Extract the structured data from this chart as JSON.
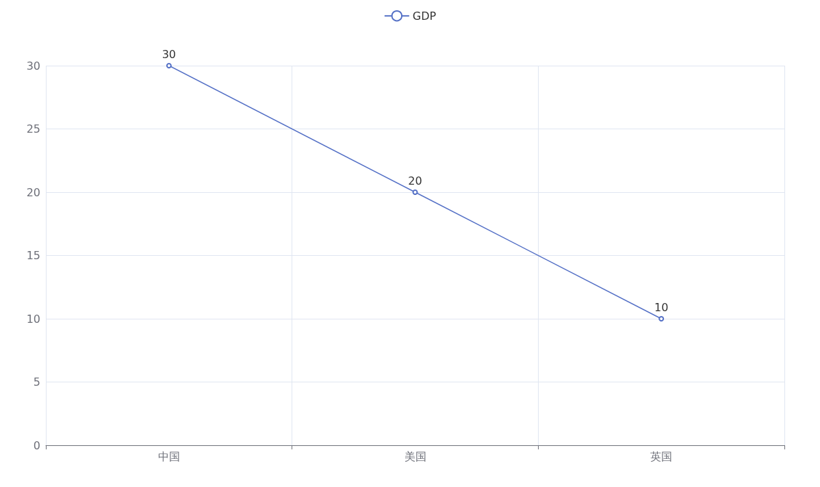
{
  "chart_data": {
    "type": "line",
    "categories": [
      "中国",
      "美国",
      "英国"
    ],
    "series": [
      {
        "name": "GDP",
        "color": "#5470c6",
        "values": [
          30,
          20,
          10
        ]
      }
    ],
    "ylim": [
      0,
      30
    ],
    "yticks": [
      0,
      5,
      10,
      15,
      20,
      25,
      30
    ],
    "grid": true,
    "legend": "top",
    "marker": "circle",
    "data_labels": true
  }
}
